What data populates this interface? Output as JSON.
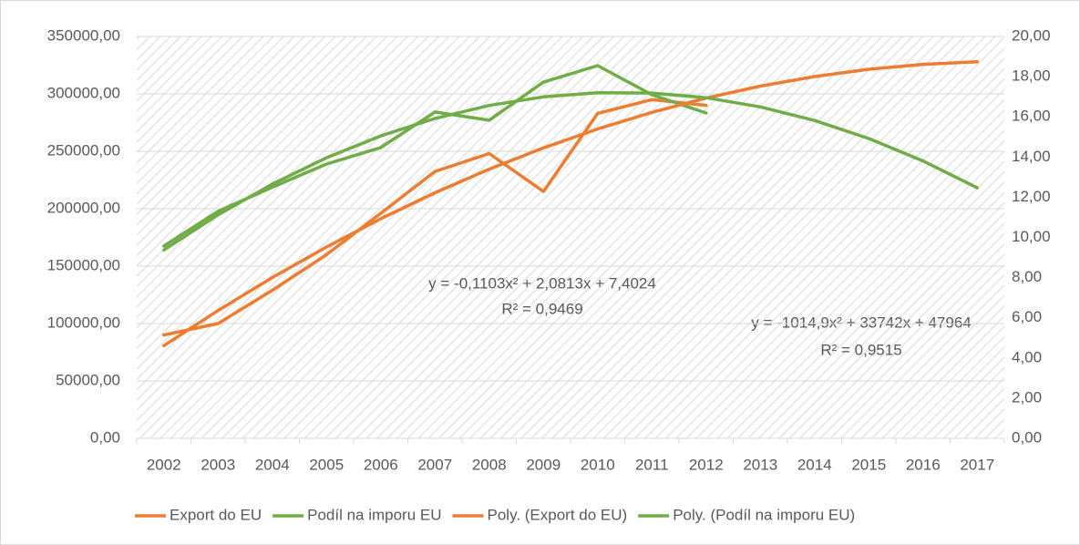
{
  "chart_data": {
    "type": "line",
    "categories": [
      "2002",
      "2003",
      "2004",
      "2005",
      "2006",
      "2007",
      "2008",
      "2009",
      "2010",
      "2011",
      "2012",
      "2013",
      "2014",
      "2015",
      "2016",
      "2017"
    ],
    "series": [
      {
        "name": "Export do EU",
        "color": "#ed7d31",
        "axis": "y",
        "values": [
          90000,
          100000,
          129000,
          160000,
          196000,
          232500,
          248000,
          215000,
          283000,
          295000,
          290000,
          null,
          null,
          null,
          null,
          null
        ]
      },
      {
        "name": "Podíl na imporu EU",
        "color": "#70ad47",
        "axis": "y2",
        "values": [
          9.57,
          11.3,
          12.5,
          13.65,
          14.47,
          16.24,
          15.83,
          17.73,
          18.55,
          17.1,
          16.19,
          null,
          null,
          null,
          null,
          null
        ]
      },
      {
        "name": "Poly. (Export do EU)",
        "color": "#ed7d31",
        "axis": "y",
        "values": [
          80691.1,
          111388.4,
          140055.9,
          166693.6,
          191301.5,
          213879.6,
          234427.9,
          252946.4,
          269435.1,
          283894,
          296323.1,
          306722.4,
          315091.9,
          321431.6,
          325741.5,
          328021.6
        ]
      },
      {
        "name": "Poly. (Podíl na imporu EU)",
        "color": "#70ad47",
        "axis": "y2",
        "values": [
          9.3734,
          11.1238,
          12.6536,
          13.9628,
          15.0514,
          15.9194,
          16.5668,
          16.9936,
          17.1998,
          17.1854,
          16.9504,
          16.4948,
          15.8186,
          14.9218,
          13.8044,
          12.4664
        ]
      }
    ],
    "ylim": [
      0,
      350000
    ],
    "yticks": [
      {
        "value": 0,
        "label": "0,00"
      },
      {
        "value": 50000,
        "label": "50000,00"
      },
      {
        "value": 100000,
        "label": "100000,00"
      },
      {
        "value": 150000,
        "label": "150000,00"
      },
      {
        "value": 200000,
        "label": "200000,00"
      },
      {
        "value": 250000,
        "label": "250000,00"
      },
      {
        "value": 300000,
        "label": "300000,00"
      },
      {
        "value": 350000,
        "label": "350000,00"
      }
    ],
    "y2lim": [
      0,
      20
    ],
    "y2ticks": [
      {
        "value": 0,
        "label": "0,00"
      },
      {
        "value": 2,
        "label": "2,00"
      },
      {
        "value": 4,
        "label": "4,00"
      },
      {
        "value": 6,
        "label": "6,00"
      },
      {
        "value": 8,
        "label": "8,00"
      },
      {
        "value": 10,
        "label": "10,00"
      },
      {
        "value": 12,
        "label": "12,00"
      },
      {
        "value": 14,
        "label": "14,00"
      },
      {
        "value": 16,
        "label": "16,00"
      },
      {
        "value": 18,
        "label": "18,00"
      },
      {
        "value": 20,
        "label": "20,00"
      }
    ],
    "annotations": [
      {
        "text": "y = -0,1103x² + 2,0813x + 7,4024"
      },
      {
        "text": "R² = 0,9469"
      },
      {
        "text": "y = -1014,9x² + 33742x + 47964"
      },
      {
        "text": "R² = 0,9515"
      }
    ],
    "grid": true,
    "legend": "bottom"
  }
}
